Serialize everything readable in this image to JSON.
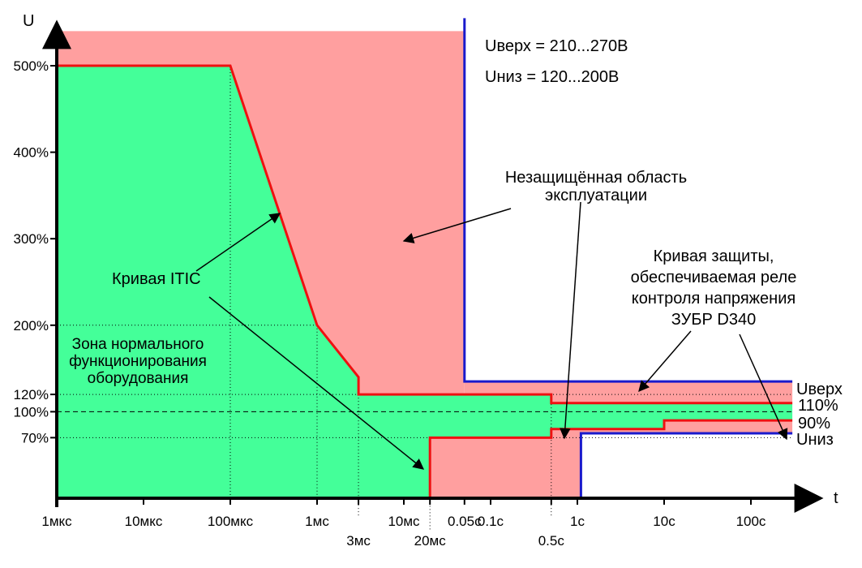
{
  "chart_data": {
    "type": "area",
    "axes": {
      "x_label": "t",
      "y_label": "U",
      "x_scale": "log",
      "x_range_s": [
        1e-06,
        300
      ],
      "y_range_pct": [
        0,
        540
      ]
    },
    "x_ticks": [
      {
        "label": "1мкс",
        "t": 1e-06
      },
      {
        "label": "10мкс",
        "t": 1e-05
      },
      {
        "label": "100мкс",
        "t": 0.0001
      },
      {
        "label": "1мс",
        "t": 0.001
      },
      {
        "label": "3мс",
        "t": 0.003
      },
      {
        "label": "10мс",
        "t": 0.01
      },
      {
        "label": "20мс",
        "t": 0.02
      },
      {
        "label": "0.05с",
        "t": 0.05
      },
      {
        "label": "0.1с",
        "t": 0.1
      },
      {
        "label": "0.5с",
        "t": 0.5
      },
      {
        "label": "1с",
        "t": 1
      },
      {
        "label": "10с",
        "t": 10
      },
      {
        "label": "100с",
        "t": 100
      }
    ],
    "y_ticks": [
      {
        "label": "500%",
        "v": 500
      },
      {
        "label": "400%",
        "v": 400
      },
      {
        "label": "300%",
        "v": 300
      },
      {
        "label": "200%",
        "v": 200
      },
      {
        "label": "120%",
        "v": 120
      },
      {
        "label": "100%",
        "v": 100
      },
      {
        "label": "70%",
        "v": 70
      }
    ],
    "series": [
      {
        "name": "Кривая ITIC",
        "color": "#ee1111",
        "upper": [
          [
            1e-06,
            500
          ],
          [
            0.0001,
            500
          ],
          [
            0.001,
            200
          ],
          [
            0.003,
            140
          ],
          [
            0.003,
            120
          ],
          [
            0.5,
            120
          ],
          [
            0.5,
            110
          ],
          [
            300,
            110
          ]
        ],
        "lower": [
          [
            0.02,
            0
          ],
          [
            0.02,
            70
          ],
          [
            0.5,
            70
          ],
          [
            0.5,
            80
          ],
          [
            10,
            80
          ],
          [
            10,
            90
          ],
          [
            300,
            90
          ]
        ]
      },
      {
        "name": "Кривая защиты ЗУБР D340",
        "color": "#1a1acc",
        "upper": [
          [
            0.05,
            555
          ],
          [
            0.05,
            135
          ],
          [
            300,
            135
          ]
        ],
        "lower": [
          [
            1.1,
            0
          ],
          [
            1.1,
            75
          ],
          [
            300,
            75
          ]
        ]
      }
    ],
    "zones": {
      "normal_fill": "#44ff99",
      "unprotected_fill": "#ff9f9f",
      "unprotected_top_pct": 540
    },
    "right_labels": [
      "Uверх",
      "110%",
      "90%",
      "Uниз"
    ],
    "annotations": {
      "legend_line1": "Uверх = 210...270В",
      "legend_line2": "Uниз = 120...200В",
      "unprotected_line1": "Незащищённая область",
      "unprotected_line2": "эксплуатации",
      "itic_label": "Кривая ITIC",
      "protection_line1": "Кривая защиты,",
      "protection_line2": "обеспечиваемая реле",
      "protection_line3": "контроля напряжения",
      "protection_line4": "ЗУБР D340",
      "normal_line1": "Зона нормального",
      "normal_line2": "функционирования",
      "normal_line3": "оборудования"
    },
    "colors": {
      "itic": "#ee1111",
      "protection": "#1a1acc",
      "normal_text": "#007700",
      "unprotected_text": "#ee0000"
    },
    "grid": "dotted reference lines"
  }
}
